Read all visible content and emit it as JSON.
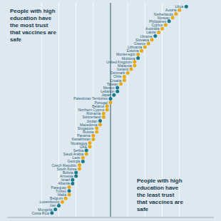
{
  "chart_data": {
    "type": "dot",
    "orientation": "horizontal",
    "annotations": [
      "People with high\neducation have\nthe most trust\nthat vaccines are\nsafe",
      "People with high\neducation have\nthe least trust\nthat vaccines are\nsafe"
    ],
    "categories": [
      "Libya",
      "Austria",
      "Netherlands",
      "Norway",
      "Philippines",
      "Cyprus",
      "Australia",
      "Latvia",
      "Ukraine",
      "Slovakia",
      "Greece",
      "Lithuania",
      "Estonia",
      "Montenegro",
      "Moldova",
      "United Kingdom",
      "Malaysia",
      "Iceland",
      "Denmark",
      "Chile",
      "Croatia",
      "Taiwan",
      "Mexico",
      "Lebanon",
      "Japan",
      "Palestinian Territories",
      "Portugal",
      "Belarus",
      "Northern Cyprus",
      "Romania",
      "Switzerland",
      "Jordan",
      "Macedonia",
      "Singapore",
      "Russia",
      "Panama",
      "Kazakhstan",
      "Nicaragua",
      "UAE",
      "Serbia",
      "Saudi Arabia",
      "Laos",
      "Georgia",
      "Czech Republic",
      "South Korea",
      "Bolivia",
      "Armenia",
      "Israel",
      "Albania",
      "Paraguay",
      "Turkey",
      "Malta",
      "Belgium",
      "Luxembourg",
      "Iran",
      "Mongolia",
      "Costa Rica"
    ],
    "values": [
      22,
      20,
      19,
      18,
      17,
      16,
      15,
      14,
      13,
      12,
      11,
      10,
      9,
      8,
      8,
      7,
      7,
      6,
      5,
      4,
      4,
      3,
      2,
      2,
      1,
      0,
      0,
      -1,
      -1,
      -2,
      -2,
      -3,
      -3,
      -4,
      -4,
      -5,
      -5,
      -6,
      -6,
      -7,
      -7,
      -8,
      -8,
      -9,
      -9,
      -10,
      -10,
      -11,
      -11,
      -12,
      -12,
      -12,
      -13,
      -14,
      -15,
      -16,
      -17
    ],
    "colors": [
      "#1a7a8a",
      "#e8aa14",
      "#e8aa14",
      "#e8aa14",
      "#1a7a8a",
      "#e8aa14",
      "#e8aa14",
      "#e8aa14",
      "#1a7a8a",
      "#e8aa14",
      "#e8aa14",
      "#e8aa14",
      "#e8aa14",
      "#e8aa14",
      "#1a7a8a",
      "#e8aa14",
      "#e8aa14",
      "#e8aa14",
      "#e8aa14",
      "#e8aa14",
      "#e8aa14",
      "#e8aa14",
      "#1a7a8a",
      "#1a7a8a",
      "#1a7a8a",
      "#1a7a8a",
      "#e8aa14",
      "#e8aa14",
      "#e8aa14",
      "#e8aa14",
      "#e8aa14",
      "#1a7a8a",
      "#e8aa14",
      "#e8aa14",
      "#e8aa14",
      "#e8aa14",
      "#e8aa14",
      "#e8aa14",
      "#e8aa14",
      "#1a7a8a",
      "#e8aa14",
      "#e8aa14",
      "#1a7a8a",
      "#e8aa14",
      "#e8aa14",
      "#1a7a8a",
      "#1a7a8a",
      "#1a7a8a",
      "#1a7a8a",
      "#e8aa14",
      "#1a7a8a",
      "#e8aa14",
      "#e8aa14",
      "#e8aa14",
      "#1a7a8a",
      "#1a7a8a",
      "#1a7a8a"
    ],
    "xlim": [
      -30,
      30
    ],
    "xticks": [
      -20,
      -15,
      -10,
      -5,
      0,
      5,
      10,
      15,
      20
    ],
    "grid": true,
    "tick_labels": false
  }
}
